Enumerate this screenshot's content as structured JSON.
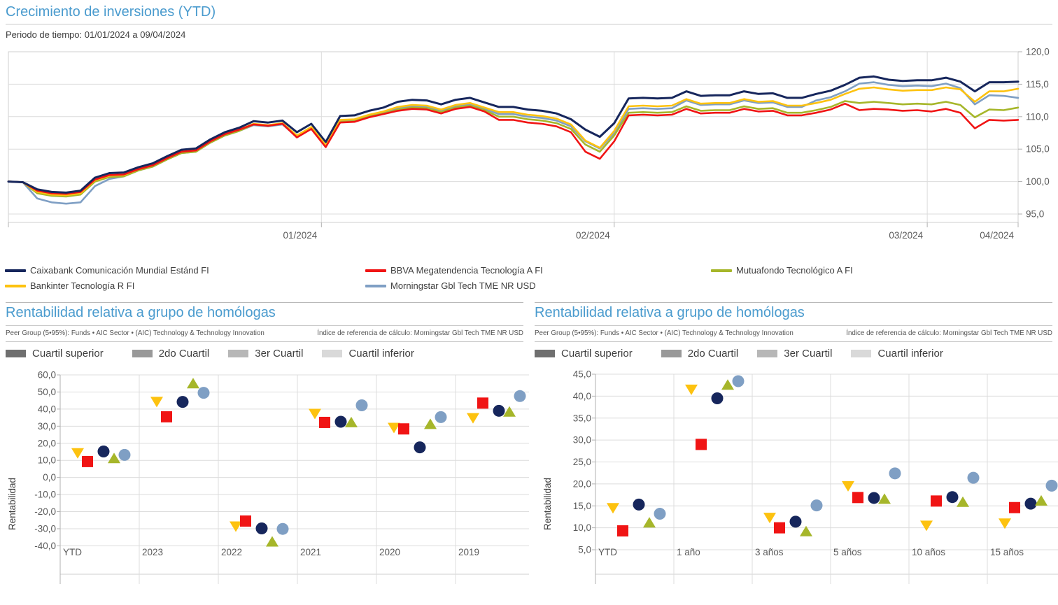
{
  "header": {
    "title": "Crecimiento de inversiones (YTD)",
    "subtitle": "Periodo de tiempo: 01/01/2024 a 09/04/2024"
  },
  "colors": {
    "accent_title": "#4a9bce",
    "caixabank": "#16265c",
    "bbva": "#f01414",
    "mutuafondo": "#a6b62a",
    "bankinter": "#fdc20f",
    "index": "#7f9fc4"
  },
  "fund_legend": {
    "columns": [
      [
        {
          "label": "Caixabank Comunicación Mundial Estánd FI",
          "color": "#16265c"
        },
        {
          "label": "Bankinter Tecnología R FI",
          "color": "#fdc20f"
        }
      ],
      [
        {
          "label": "BBVA Megatendencia Tecnología A FI",
          "color": "#f01414"
        },
        {
          "label": "Morningstar Gbl Tech TME NR USD",
          "color": "#7f9fc4"
        }
      ],
      [
        {
          "label": "Mutuafondo Tecnológico A FI",
          "color": "#a6b62a"
        }
      ]
    ]
  },
  "panels": [
    {
      "title": "Rentabilidad relativa a grupo de homólogas",
      "peer_group": "Peer Group (5•95%): Funds • AIC Sector • (AIC) Technology & Technology Innovation",
      "index_ref": "Índice de referencia de cálculo: Morningstar Gbl Tech TME NR USD",
      "quartile_legend": [
        {
          "label": "Cuartil superior",
          "color": "#6f6f6f"
        },
        {
          "label": "2do Cuartil",
          "color": "#999999"
        },
        {
          "label": "3er Cuartil",
          "color": "#b7b7b7"
        },
        {
          "label": "Cuartil inferior",
          "color": "#d9d9d9"
        }
      ]
    },
    {
      "title": "Rentabilidad relativa a grupo de homólogas",
      "peer_group": "Peer Group (5•95%): Funds • AIC Sector • (AIC) Technology & Technology Innovation",
      "index_ref": "Índice de referencia de cálculo: Morningstar Gbl Tech TME NR USD",
      "quartile_legend": [
        {
          "label": "Cuartil superior",
          "color": "#6f6f6f"
        },
        {
          "label": "2do Cuartil",
          "color": "#999999"
        },
        {
          "label": "3er Cuartil",
          "color": "#b7b7b7"
        },
        {
          "label": "Cuartil inferior",
          "color": "#d9d9d9"
        }
      ]
    }
  ],
  "chart_data": [
    {
      "id": "growth",
      "type": "line",
      "title": "Crecimiento de inversiones (YTD)",
      "x_range": [
        "01/01/2024",
        "09/04/2024"
      ],
      "ylim": [
        95,
        120
      ],
      "ystep": 5,
      "grid": true,
      "x_ticks": [
        {
          "label": "01/2024",
          "pos": 0.31
        },
        {
          "label": "02/2024",
          "pos": 0.6
        },
        {
          "label": "03/2024",
          "pos": 0.91
        },
        {
          "label": "04/2024",
          "pos": 1.0
        }
      ],
      "series": [
        {
          "name": "Morningstar Gbl Tech TME NR USD",
          "color": "#7f9fc4",
          "width": 2.6,
          "values": [
            100.0,
            99.9,
            97.4,
            96.8,
            96.6,
            96.8,
            99.3,
            100.4,
            100.8,
            101.7,
            102.3,
            103.4,
            104.4,
            104.6,
            106.0,
            107.1,
            107.8,
            108.7,
            108.5,
            108.8,
            106.9,
            108.2,
            105.4,
            109.3,
            109.4,
            110.1,
            110.6,
            111.3,
            111.6,
            111.5,
            110.9,
            111.6,
            111.9,
            111.2,
            110.4,
            110.4,
            110.0,
            109.8,
            109.4,
            108.5,
            106.2,
            105.1,
            107.5,
            111.2,
            111.3,
            111.2,
            111.3,
            112.5,
            111.8,
            111.9,
            111.9,
            112.5,
            112.1,
            112.2,
            111.5,
            111.5,
            112.5,
            113.0,
            113.9,
            115.1,
            115.3,
            114.9,
            114.7,
            114.8,
            114.7,
            115.1,
            114.4,
            111.9,
            113.3,
            113.2,
            112.9
          ]
        },
        {
          "name": "Mutuafondo Tecnológico A FI",
          "color": "#a6b62a",
          "width": 2.6,
          "values": [
            100.0,
            99.9,
            98.2,
            97.8,
            97.7,
            98.0,
            100.0,
            100.7,
            100.8,
            101.7,
            102.3,
            103.4,
            104.4,
            104.6,
            106.0,
            107.1,
            107.8,
            108.8,
            108.6,
            108.9,
            106.9,
            108.2,
            105.4,
            109.2,
            109.3,
            110.0,
            110.5,
            111.1,
            111.4,
            111.3,
            110.7,
            111.4,
            111.7,
            111.0,
            110.0,
            110.0,
            109.6,
            109.4,
            109.0,
            108.1,
            105.7,
            104.6,
            107.1,
            110.6,
            110.7,
            110.6,
            110.7,
            111.6,
            110.9,
            111.0,
            111.0,
            111.6,
            111.2,
            111.3,
            110.6,
            110.6,
            111.0,
            111.5,
            112.4,
            112.1,
            112.3,
            112.1,
            111.9,
            112.0,
            111.9,
            112.3,
            111.8,
            109.9,
            111.1,
            111.0,
            111.4
          ]
        },
        {
          "name": "Bankinter Tecnología R FI",
          "color": "#fdc20f",
          "width": 2.6,
          "values": [
            100.0,
            99.9,
            98.4,
            98.0,
            97.9,
            98.2,
            100.2,
            100.9,
            101.0,
            101.9,
            102.5,
            103.6,
            104.6,
            104.8,
            106.2,
            107.3,
            108.0,
            108.9,
            108.7,
            109.0,
            107.1,
            108.4,
            105.6,
            109.5,
            109.6,
            110.3,
            110.8,
            111.5,
            111.8,
            111.7,
            111.1,
            111.8,
            112.1,
            111.4,
            110.7,
            110.7,
            110.3,
            110.1,
            109.7,
            108.8,
            106.3,
            105.2,
            107.8,
            111.6,
            111.7,
            111.6,
            111.7,
            112.7,
            112.0,
            112.1,
            112.1,
            112.7,
            112.3,
            112.4,
            111.7,
            111.7,
            112.1,
            112.6,
            113.5,
            114.3,
            114.5,
            114.2,
            114.0,
            114.1,
            114.1,
            114.5,
            114.2,
            112.3,
            113.9,
            113.9,
            114.3
          ]
        },
        {
          "name": "BBVA Megatendencia Tecnología A FI",
          "color": "#f01414",
          "width": 2.6,
          "values": [
            100.0,
            99.9,
            98.6,
            98.2,
            98.1,
            98.4,
            100.3,
            101.0,
            101.1,
            101.9,
            102.5,
            103.6,
            104.6,
            104.8,
            106.2,
            107.3,
            108.0,
            108.8,
            108.6,
            108.9,
            106.8,
            108.1,
            105.3,
            109.1,
            109.2,
            109.9,
            110.4,
            110.9,
            111.2,
            111.1,
            110.5,
            111.2,
            111.5,
            110.8,
            109.5,
            109.5,
            109.1,
            108.9,
            108.5,
            107.6,
            104.6,
            103.5,
            106.2,
            110.2,
            110.3,
            110.2,
            110.3,
            111.2,
            110.5,
            110.6,
            110.6,
            111.2,
            110.8,
            110.9,
            110.2,
            110.2,
            110.6,
            111.1,
            112.0,
            111.0,
            111.2,
            111.1,
            110.9,
            111.0,
            110.8,
            111.2,
            110.6,
            108.2,
            109.5,
            109.4,
            109.5
          ]
        },
        {
          "name": "Caixabank Comunicación Mundial Estánd FI",
          "color": "#16265c",
          "width": 3.0,
          "values": [
            100.0,
            99.9,
            98.8,
            98.4,
            98.3,
            98.6,
            100.6,
            101.3,
            101.4,
            102.2,
            102.8,
            103.9,
            104.9,
            105.1,
            106.5,
            107.6,
            108.3,
            109.3,
            109.1,
            109.4,
            107.6,
            108.9,
            106.1,
            110.1,
            110.2,
            110.9,
            111.4,
            112.3,
            112.6,
            112.5,
            111.9,
            112.6,
            112.9,
            112.2,
            111.5,
            111.5,
            111.1,
            110.9,
            110.5,
            109.6,
            108.0,
            106.9,
            109.0,
            112.8,
            112.9,
            112.8,
            112.9,
            113.9,
            113.2,
            113.3,
            113.3,
            113.9,
            113.5,
            113.6,
            112.9,
            112.9,
            113.5,
            114.0,
            114.9,
            116.0,
            116.2,
            115.7,
            115.5,
            115.6,
            115.6,
            116.0,
            115.4,
            113.9,
            115.3,
            115.3,
            115.4
          ]
        }
      ]
    },
    {
      "id": "relative-by-year",
      "type": "scatter",
      "title": "Rentabilidad relativa a grupo de homólogas",
      "ylabel": "Rentabilidad",
      "categories": [
        "YTD",
        "2023",
        "2022",
        "2021",
        "2020",
        "2019"
      ],
      "ylim": [
        -40,
        60
      ],
      "ystep": 10,
      "series": [
        {
          "name": "Bankinter Tecnología R FI",
          "marker": "triangle-down",
          "color": "#fdc20f",
          "values": [
            14.5,
            44.5,
            -28.4,
            37.5,
            29.3,
            35.0
          ]
        },
        {
          "name": "BBVA Megatendencia Tecnología A FI",
          "marker": "square",
          "color": "#f01414",
          "values": [
            9.3,
            35.5,
            -25.5,
            32.2,
            28.4,
            43.5
          ]
        },
        {
          "name": "Caixabank Comunicación Mundial Estánd FI",
          "marker": "circle",
          "color": "#16265c",
          "values": [
            15.2,
            44.2,
            -29.8,
            32.6,
            17.6,
            39.0
          ]
        },
        {
          "name": "Mutuafondo Tecnológico A FI",
          "marker": "triangle-up",
          "color": "#a6b62a",
          "values": [
            11.0,
            54.8,
            -37.8,
            32.0,
            31.0,
            38.2
          ]
        },
        {
          "name": "Morningstar Gbl Tech TME NR USD",
          "marker": "circle",
          "color": "#7f9fc4",
          "values": [
            13.2,
            49.5,
            -30.1,
            42.2,
            35.3,
            47.6
          ]
        }
      ]
    },
    {
      "id": "relative-trailing",
      "type": "scatter",
      "title": "Rentabilidad relativa a grupo de homólogas",
      "ylabel": "Rentabilidad",
      "categories": [
        "YTD",
        "1 año",
        "3 años",
        "5 años",
        "10 años",
        "15 años"
      ],
      "ylim": [
        5,
        45
      ],
      "ystep": 5,
      "series": [
        {
          "name": "Bankinter Tecnología R FI",
          "marker": "triangle-down",
          "color": "#fdc20f",
          "values": [
            14.6,
            41.6,
            12.4,
            19.6,
            10.6,
            11.1
          ]
        },
        {
          "name": "BBVA Megatendencia Tecnología A FI",
          "marker": "square",
          "color": "#f01414",
          "values": [
            9.3,
            29.0,
            10.0,
            16.9,
            16.1,
            14.6
          ]
        },
        {
          "name": "Caixabank Comunicación Mundial Estánd FI",
          "marker": "circle",
          "color": "#16265c",
          "values": [
            15.3,
            39.5,
            11.4,
            16.8,
            17.0,
            15.5
          ]
        },
        {
          "name": "Mutuafondo Tecnológico A FI",
          "marker": "triangle-up",
          "color": "#a6b62a",
          "values": [
            11.1,
            42.5,
            9.1,
            16.5,
            15.8,
            16.1
          ]
        },
        {
          "name": "Morningstar Gbl Tech TME NR USD",
          "marker": "circle",
          "color": "#7f9fc4",
          "values": [
            13.2,
            43.4,
            15.1,
            22.4,
            21.4,
            19.6
          ]
        }
      ]
    }
  ]
}
